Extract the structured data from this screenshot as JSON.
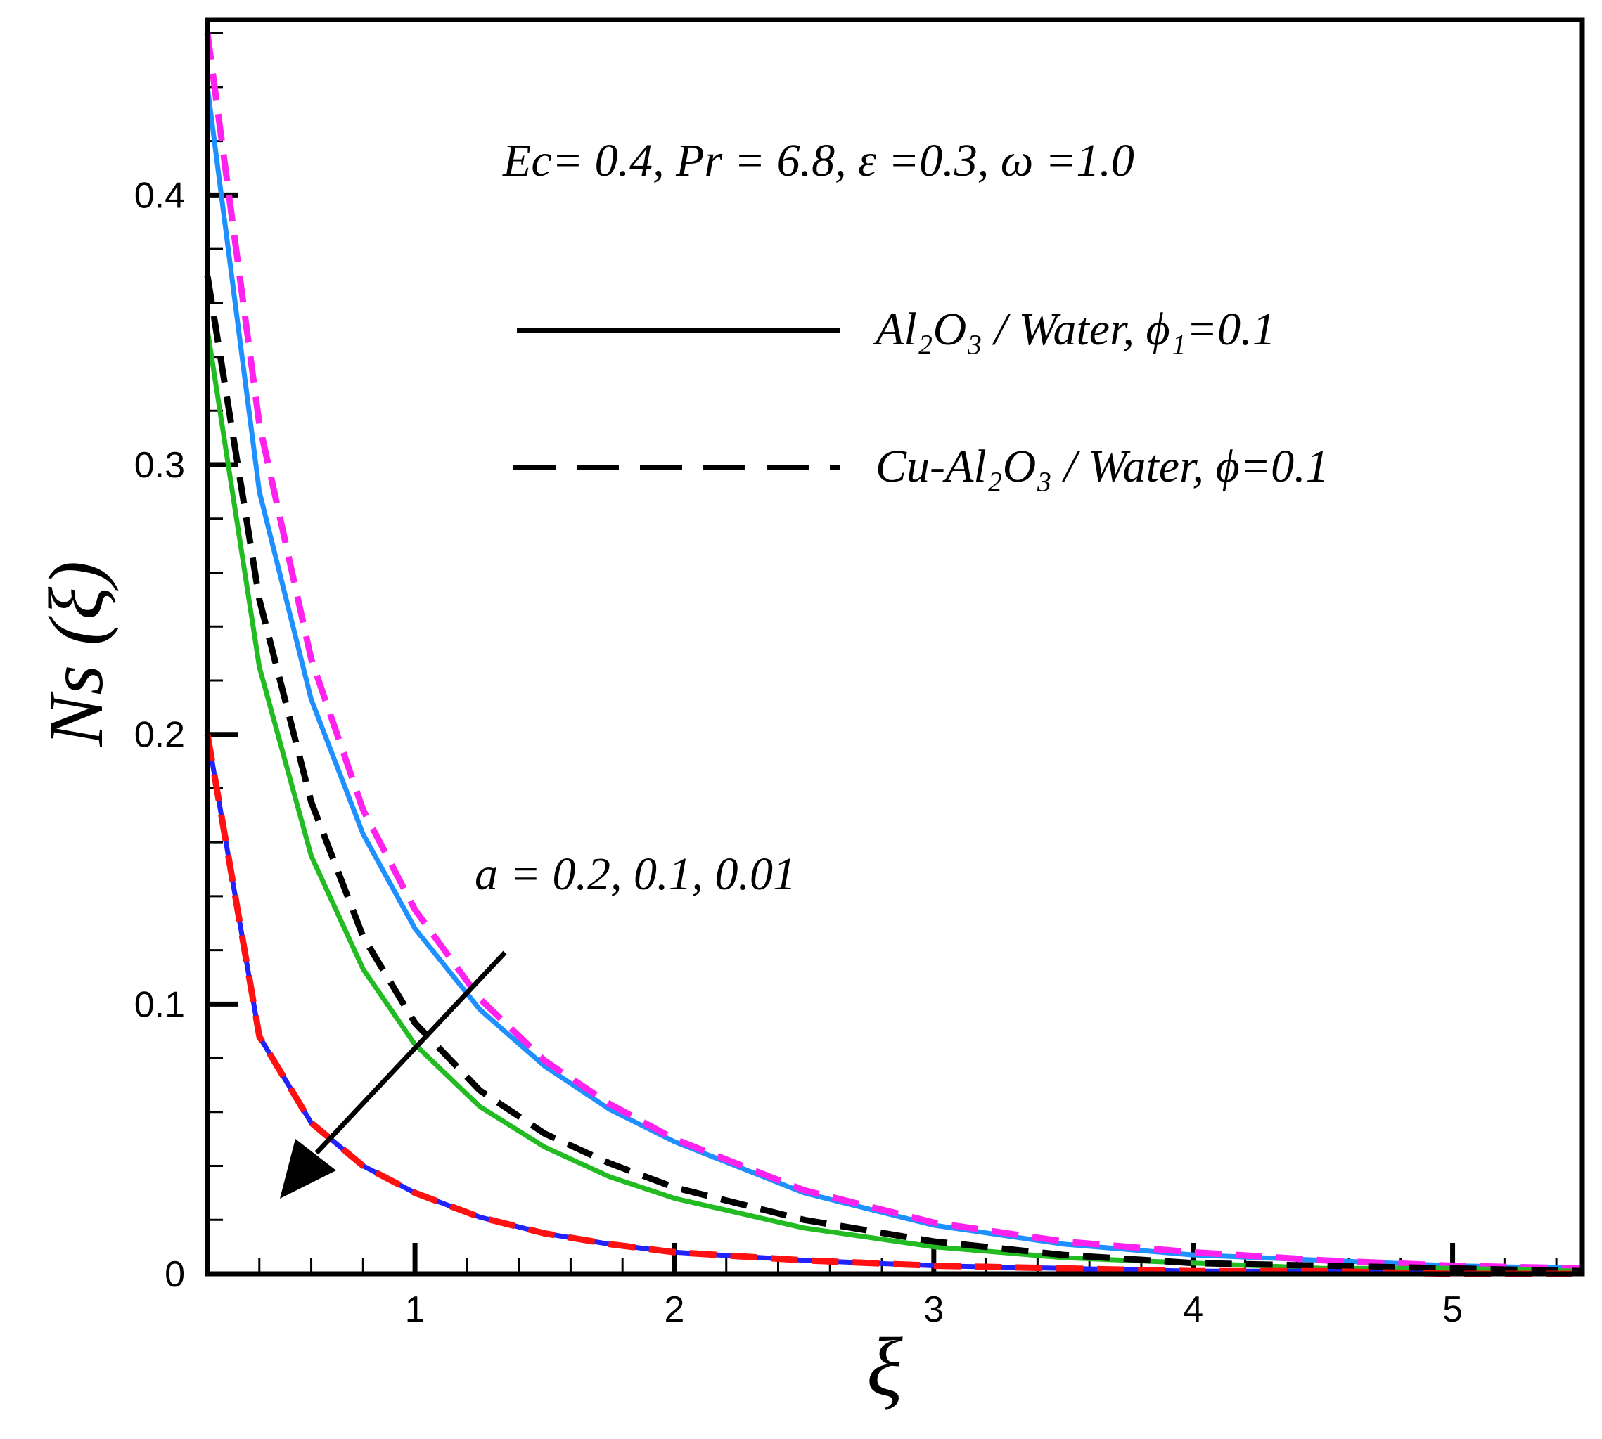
{
  "chart_data": {
    "type": "line",
    "xlabel": "ξ",
    "ylabel": "Ns (ξ)",
    "xlim": [
      0.2,
      5.5
    ],
    "ylim": [
      0,
      0.465
    ],
    "x_ticks": [
      "1",
      "2",
      "3",
      "4",
      "5"
    ],
    "y_ticks": [
      "0",
      "0.1",
      "0.2",
      "0.3",
      "0.4"
    ],
    "annotation_params": "Ec= 0.4, Pr = 6.8, ε =0.3, ω =1.0",
    "annotation_a": "a = 0.2, 0.1, 0.01",
    "legend": [
      {
        "label": "Al₂O₃ / Water,  ϕ₁=0.1",
        "style": "solid",
        "color": "#000000"
      },
      {
        "label": "Cu-Al₂O₃ / Water, ϕ=0.1",
        "style": "dashed",
        "color": "#000000"
      }
    ],
    "x": [
      0.2,
      0.4,
      0.6,
      0.8,
      1.0,
      1.25,
      1.5,
      1.75,
      2.0,
      2.5,
      3.0,
      3.5,
      4.0,
      4.5,
      5.0,
      5.5
    ],
    "series": [
      {
        "style": "solid",
        "color": "#1e90ff",
        "values": [
          0.44,
          0.29,
          0.213,
          0.163,
          0.128,
          0.098,
          0.077,
          0.061,
          0.049,
          0.03,
          0.018,
          0.011,
          0.007,
          0.005,
          0.003,
          0.002
        ]
      },
      {
        "style": "dashed",
        "color": "#ff22ee",
        "values": [
          0.46,
          0.315,
          0.228,
          0.172,
          0.135,
          0.102,
          0.079,
          0.063,
          0.05,
          0.031,
          0.019,
          0.012,
          0.008,
          0.005,
          0.003,
          0.002
        ]
      },
      {
        "style": "solid",
        "color": "#22bb22",
        "values": [
          0.35,
          0.225,
          0.155,
          0.113,
          0.085,
          0.062,
          0.047,
          0.036,
          0.028,
          0.017,
          0.01,
          0.006,
          0.004,
          0.002,
          0.002,
          0.001
        ]
      },
      {
        "style": "dashed",
        "color": "#000000",
        "values": [
          0.37,
          0.25,
          0.175,
          0.125,
          0.093,
          0.068,
          0.052,
          0.041,
          0.032,
          0.02,
          0.012,
          0.007,
          0.004,
          0.003,
          0.002,
          0.001
        ]
      },
      {
        "style": "solid",
        "color": "#2222ff",
        "values": [
          0.2,
          0.088,
          0.056,
          0.04,
          0.03,
          0.021,
          0.015,
          0.011,
          0.008,
          0.005,
          0.003,
          0.002,
          0.001,
          0.001,
          0.0,
          0.0
        ]
      },
      {
        "style": "dashed",
        "color": "#ff1111",
        "values": [
          0.2,
          0.088,
          0.056,
          0.04,
          0.03,
          0.021,
          0.015,
          0.011,
          0.008,
          0.005,
          0.003,
          0.002,
          0.001,
          0.001,
          0.0,
          0.0
        ]
      }
    ]
  }
}
